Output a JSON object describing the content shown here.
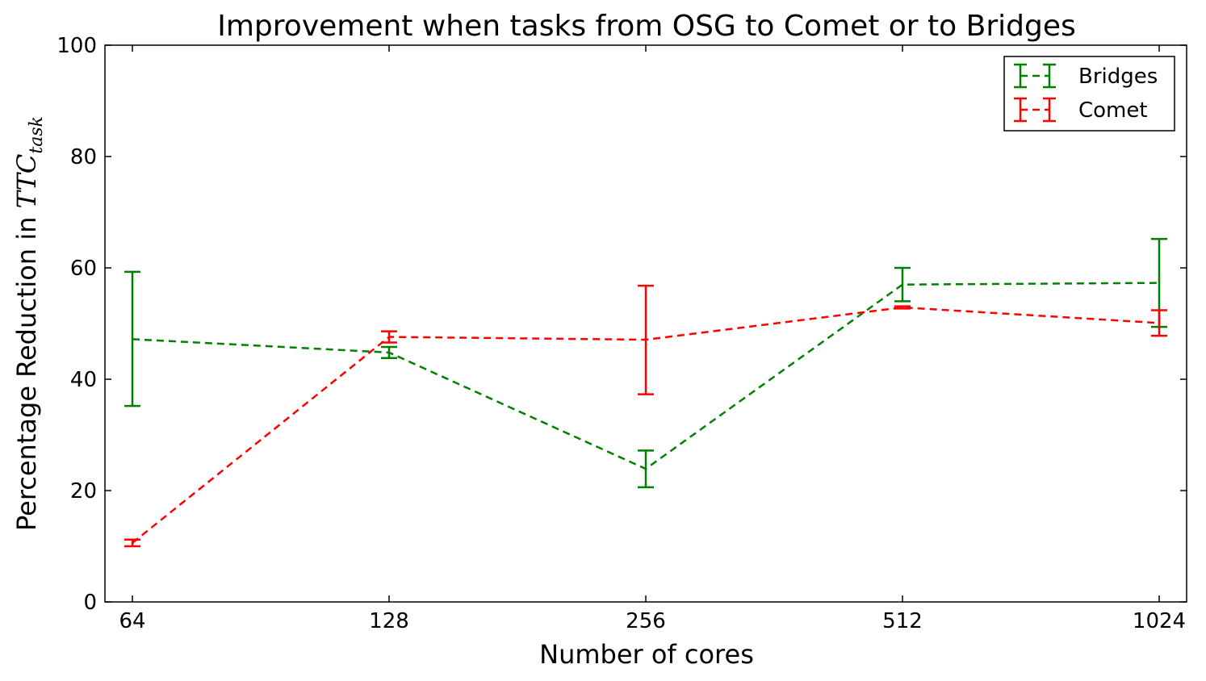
{
  "chart_data": {
    "type": "line",
    "title": "Improvement when tasks from OSG to Comet or to Bridges",
    "xlabel": "Number of cores",
    "ylabel_prefix": "Percentage Reduction in ",
    "ylabel_math": "TTC",
    "ylabel_math_sub": "task",
    "categories": [
      "64",
      "128",
      "256",
      "512",
      "1024"
    ],
    "ylim": [
      0,
      100
    ],
    "yticks": [
      "0",
      "20",
      "40",
      "60",
      "80",
      "100"
    ],
    "yticks_values": [
      0,
      20,
      40,
      60,
      80,
      100
    ],
    "grid": false,
    "legend_placement": "top-right",
    "series": [
      {
        "name": "Bridges",
        "color": "#008000",
        "values": [
          47.2,
          44.8,
          23.9,
          57.0,
          57.3
        ],
        "err_low": [
          35.2,
          43.8,
          20.6,
          54.0,
          49.4
        ],
        "err_high": [
          59.3,
          45.8,
          27.2,
          60.0,
          65.2
        ]
      },
      {
        "name": "Comet",
        "color": "#ff0000",
        "values": [
          10.6,
          47.6,
          47.1,
          52.9,
          50.1
        ],
        "err_low": [
          10.0,
          46.6,
          37.3,
          52.7,
          47.8
        ],
        "err_high": [
          11.2,
          48.6,
          56.8,
          53.1,
          52.4
        ]
      }
    ]
  }
}
